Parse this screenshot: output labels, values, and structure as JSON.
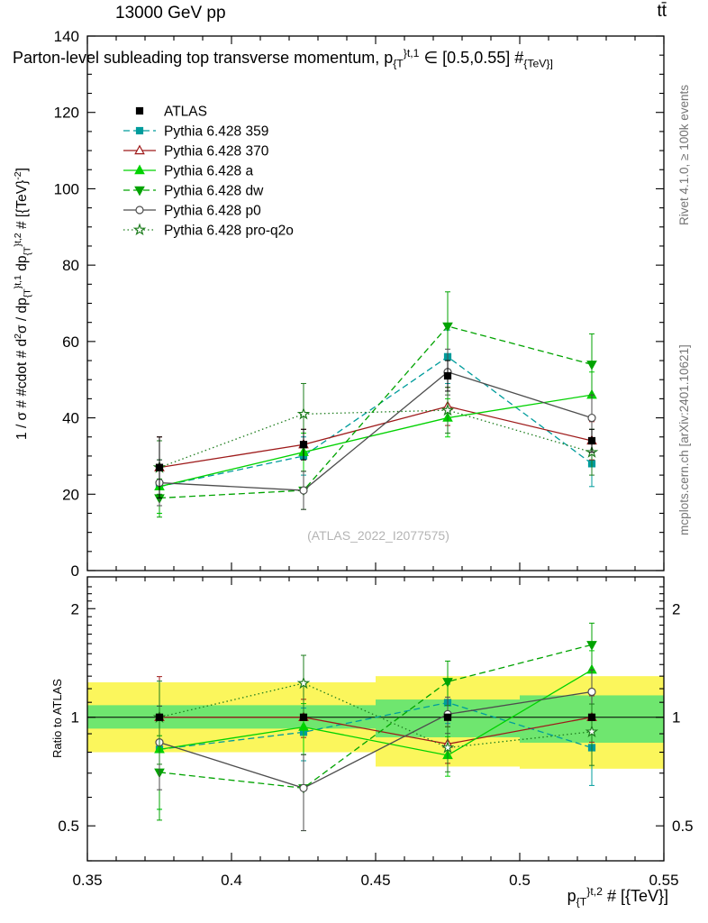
{
  "header": {
    "top_left": "13000 GeV pp",
    "top_right": "tt̄"
  },
  "credits": {
    "right_top": "Rivet 4.1.0, ≥ 100k events",
    "right_bottom": "mcplots.cern.ch [arXiv:2401.10621]",
    "watermark": "(ATLAS_2022_I2077575)"
  },
  "labels": {
    "ratio_ylabel": "Ratio to ATLAS",
    "main_title_parts": [
      {
        "t": "Parton-level subleading top transverse momentum, p"
      },
      {
        "t": "{T",
        "s": "sub"
      },
      {
        "t": "}t,1",
        "s": "sup"
      },
      {
        "t": " ∈ [0.5,0.55] #"
      },
      {
        "t": "{TeV}]",
        "s": "sub"
      }
    ],
    "ylabel_parts": [
      {
        "t": "1 / σ # #cdot # d"
      },
      {
        "t": "2",
        "s": "sup"
      },
      {
        "t": "σ / dp"
      },
      {
        "t": "{T",
        "s": "sub"
      },
      {
        "t": "}t,1",
        "s": "sup"
      },
      {
        "t": " dp"
      },
      {
        "t": "{T",
        "s": "sub"
      },
      {
        "t": "}t,2",
        "s": "sup"
      },
      {
        "t": " # [{TeV}"
      },
      {
        "t": "-2",
        "s": "sup"
      },
      {
        "t": "]"
      }
    ],
    "xlabel_parts": [
      {
        "t": "p"
      },
      {
        "t": "{T",
        "s": "sub"
      },
      {
        "t": "}t,2",
        "s": "sup"
      },
      {
        "t": " # [{TeV}]"
      }
    ]
  },
  "chart_data": {
    "type": "line",
    "title": "Parton-level subleading top transverse momentum, p_T^{t,1} in [0.5,0.55] TeV",
    "xlabel": "p_T^{t,2} [TeV]",
    "ylabel_main": "1/sigma d2sigma/dpT^{t,1}dpT^{t,2} [TeV^-2]",
    "ylabel_ratio": "Ratio to ATLAS",
    "x": [
      0.375,
      0.425,
      0.475,
      0.525
    ],
    "xlim": [
      0.35,
      0.55
    ],
    "x_major_ticks": [
      0.35,
      0.4,
      0.45,
      0.5,
      0.55
    ],
    "main": {
      "ylim": [
        0,
        140
      ],
      "tick_major": 20,
      "tick_minor": 5
    },
    "ratio": {
      "ylim": [
        0.4,
        2.45
      ],
      "scale": "log",
      "ticks": [
        0.5,
        1,
        2
      ]
    },
    "series": [
      {
        "name": "ATLAS",
        "slug": "atlas",
        "ref": true,
        "color": "#000000",
        "marker": "square",
        "fill": true,
        "line": "none",
        "values": [
          27,
          33,
          51,
          34
        ],
        "errors": [
          8,
          4,
          4,
          3
        ]
      },
      {
        "name": "Pythia 6.428 359",
        "slug": "pythia-359",
        "ref": false,
        "color": "#009c9c",
        "marker": "square",
        "fill": true,
        "line": "dash",
        "values": [
          22,
          30,
          56,
          28
        ],
        "errors": [
          7,
          5,
          7,
          6
        ]
      },
      {
        "name": "Pythia 6.428 370",
        "slug": "pythia-370",
        "ref": false,
        "color": "#9e1a1a",
        "marker": "triangle-up",
        "fill": false,
        "line": "solid",
        "values": [
          27,
          33,
          43,
          34
        ],
        "errors": [
          8,
          4,
          5,
          5
        ]
      },
      {
        "name": "Pythia 6.428 a",
        "slug": "pythia-a",
        "ref": false,
        "color": "#00d200",
        "marker": "triangle-up",
        "fill": true,
        "line": "solid",
        "values": [
          22,
          31,
          40,
          46
        ],
        "errors": [
          7,
          5,
          5,
          6
        ]
      },
      {
        "name": "Pythia 6.428 dw",
        "slug": "pythia-dw",
        "ref": false,
        "color": "#00a300",
        "marker": "triangle-down",
        "fill": true,
        "line": "dash",
        "values": [
          19,
          21,
          64,
          54
        ],
        "errors": [
          5,
          5,
          9,
          8
        ]
      },
      {
        "name": "Pythia 6.428 p0",
        "slug": "pythia-p0",
        "ref": false,
        "color": "#4d4d4d",
        "marker": "circle",
        "fill": false,
        "line": "solid",
        "values": [
          23,
          21,
          52,
          40
        ],
        "errors": [
          6,
          5,
          6,
          6
        ]
      },
      {
        "name": "Pythia 6.428 pro-q2o",
        "slug": "pythia-pro-q2o",
        "ref": false,
        "color": "#1e7d1e",
        "marker": "star",
        "fill": false,
        "line": "dot",
        "values": [
          27,
          41,
          42,
          31
        ],
        "errors": [
          7,
          8,
          6,
          6
        ]
      }
    ],
    "bands": {
      "edges": [
        0.35,
        0.4,
        0.45,
        0.5,
        0.55
      ],
      "yellow": [
        [
          0.8,
          1.25
        ],
        [
          0.8,
          1.25
        ],
        [
          0.73,
          1.3
        ],
        [
          0.72,
          1.3
        ]
      ],
      "green": [
        [
          0.93,
          1.08
        ],
        [
          0.93,
          1.08
        ],
        [
          0.88,
          1.12
        ],
        [
          0.85,
          1.15
        ]
      ],
      "yellow_color": "#fbf65c",
      "green_color": "#6fe66f"
    }
  }
}
